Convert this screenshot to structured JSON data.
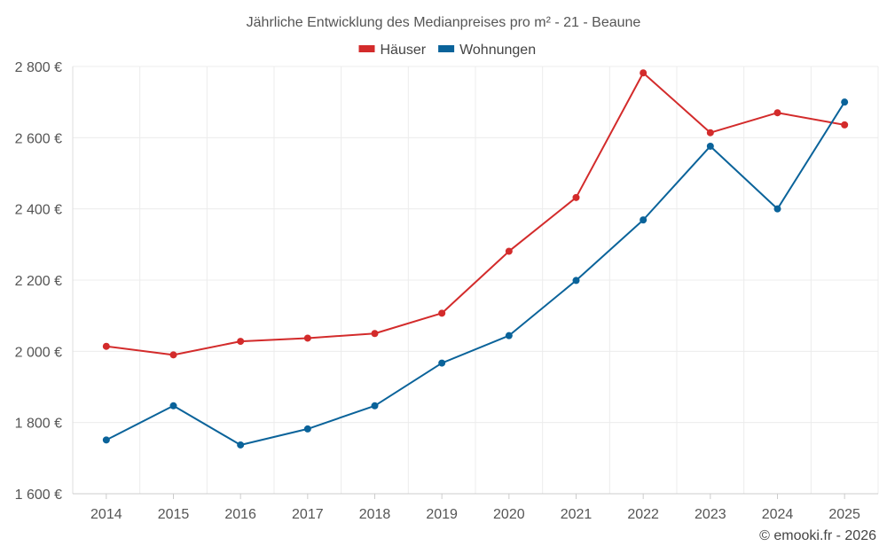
{
  "chart_data": {
    "type": "line",
    "title": "Jährliche Entwicklung des Medianpreises pro m² - 21 - Beaune",
    "categories": [
      "2014",
      "2015",
      "2016",
      "2017",
      "2018",
      "2019",
      "2020",
      "2021",
      "2022",
      "2023",
      "2024",
      "2025"
    ],
    "series": [
      {
        "name": "Häuser",
        "color": "#d32b2b",
        "values": [
          2014,
          1990,
          2028,
          2037,
          2050,
          2107,
          2281,
          2432,
          2782,
          2614,
          2670,
          2636
        ]
      },
      {
        "name": "Wohnungen",
        "color": "#0a639a",
        "values": [
          1751,
          1847,
          1737,
          1782,
          1847,
          1967,
          2044,
          2199,
          2369,
          2576,
          2400,
          2700
        ]
      }
    ],
    "ylim": [
      1600,
      2800
    ],
    "yticks": [
      1600,
      1800,
      2000,
      2200,
      2400,
      2600,
      2800
    ],
    "ytick_labels": [
      "1 600 €",
      "1 800 €",
      "2 000 €",
      "2 200 €",
      "2 400 €",
      "2 600 €",
      "2 800 €"
    ],
    "xlabel": "",
    "ylabel": "",
    "grid": true,
    "legend": "top-center"
  },
  "credit": "© emooki.fr - 2026"
}
